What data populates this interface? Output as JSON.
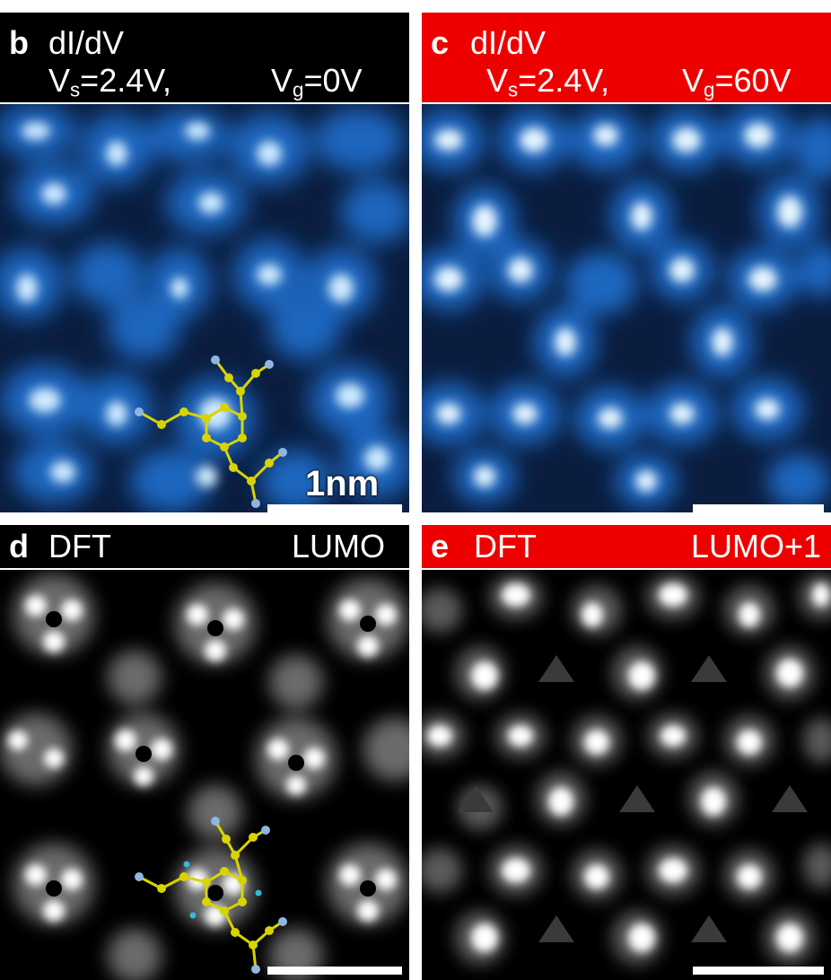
{
  "panels": {
    "b": {
      "letter": "b",
      "line1": "dI/dV",
      "vs_prefix": "V",
      "vs_sub": "s",
      "vs_value": "=2.4V,",
      "vg_prefix": "V",
      "vg_sub": "g",
      "vg_value": "=0V",
      "header_color": "#000000"
    },
    "c": {
      "letter": "c",
      "line1": "dI/dV",
      "vs_prefix": "V",
      "vs_sub": "s",
      "vs_value": "=2.4V,",
      "vg_prefix": "V",
      "vg_sub": "g",
      "vg_value": "=60V",
      "header_color": "#ee0000"
    },
    "d": {
      "letter": "d",
      "left": "DFT",
      "right": "LUMO",
      "header_color": "#000000"
    },
    "e": {
      "letter": "e",
      "left": "DFT",
      "right": "LUMO+1",
      "header_color": "#ee0000"
    }
  },
  "scale_bar": {
    "label": "1nm"
  },
  "colors": {
    "stm_dark": "#050a1a",
    "stm_mid": "#1e63b8",
    "stm_bright": "#dff2ff",
    "dft_bright": "#ffffff",
    "molecule_carbon": "#d8d400",
    "molecule_hydrogen": "#37b8d8",
    "molecule_nitrogen": "#8fb6e0"
  }
}
